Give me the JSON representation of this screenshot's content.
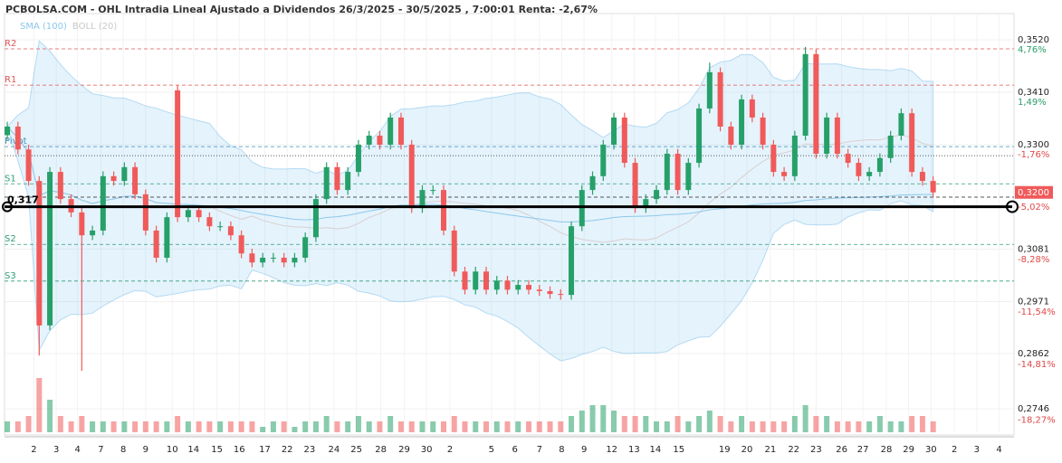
{
  "chart_data": {
    "type": "candlestick",
    "title": "PCBOLSA.COM - OHL Intradia Lineal Ajustado a Dividendos 26/3/2025 - 30/5/2025 , 7:00:01 Renta: -2,67%",
    "legend": [
      {
        "name": "SMA (100)",
        "color": "#8cc8ec"
      },
      {
        "name": "BOLL (20)",
        "color": "#c8c8c8"
      }
    ],
    "sma_period": 100,
    "boll_period": 20,
    "up_color": "#26a069",
    "down_color": "#f05a5a",
    "open": [
      0.332,
      0.3338,
      0.329,
      0.3224,
      0.2921,
      0.3243,
      0.3186,
      0.3158,
      0.311,
      0.312,
      0.3234,
      0.3224,
      0.3253,
      0.3196,
      0.312,
      0.3063,
      0.3414,
      0.3148,
      0.3163,
      0.3148,
      0.3129,
      0.3129,
      0.311,
      0.3072,
      0.3053,
      0.3063,
      0.3063,
      0.3053,
      0.3063,
      0.3106,
      0.3186,
      0.3253,
      0.3205,
      0.3243,
      0.33,
      0.3319,
      0.33,
      0.3357,
      0.33,
      0.3167,
      0.3205,
      0.3205,
      0.312,
      0.3034,
      0.2996,
      0.3034,
      0.2996,
      0.3015,
      0.2996,
      0.3006,
      0.2996,
      0.2993,
      0.2987,
      0.2985,
      0.3129,
      0.3205,
      0.3234,
      0.33,
      0.3357,
      0.3262,
      0.3167,
      0.3186,
      0.3205,
      0.3281,
      0.3205,
      0.3262,
      0.3376,
      0.3452,
      0.3338,
      0.33,
      0.3395,
      0.3357,
      0.33,
      0.3243,
      0.3234,
      0.3319,
      0.349,
      0.3281,
      0.3357,
      0.3281,
      0.3262,
      0.3234,
      0.3243,
      0.3272,
      0.3319,
      0.3366,
      0.3243,
      0.3224
    ],
    "high": [
      0.3348,
      0.3348,
      0.33,
      0.3234,
      0.3253,
      0.3253,
      0.3196,
      0.3168,
      0.313,
      0.3244,
      0.3244,
      0.3263,
      0.3263,
      0.3206,
      0.313,
      0.3158,
      0.3425,
      0.3173,
      0.3173,
      0.3158,
      0.3139,
      0.3139,
      0.312,
      0.3082,
      0.3073,
      0.3073,
      0.3073,
      0.3073,
      0.3116,
      0.3196,
      0.3263,
      0.3263,
      0.3253,
      0.331,
      0.3329,
      0.3329,
      0.3367,
      0.3367,
      0.331,
      0.3215,
      0.3215,
      0.3215,
      0.313,
      0.3044,
      0.3044,
      0.3044,
      0.3025,
      0.3025,
      0.3016,
      0.3016,
      0.3006,
      0.3003,
      0.2997,
      0.3139,
      0.3215,
      0.3244,
      0.331,
      0.3367,
      0.3367,
      0.3272,
      0.3196,
      0.3215,
      0.3291,
      0.3291,
      0.3272,
      0.3386,
      0.3472,
      0.3462,
      0.3348,
      0.3405,
      0.3405,
      0.3367,
      0.331,
      0.3253,
      0.3329,
      0.3505,
      0.35,
      0.3367,
      0.3367,
      0.3291,
      0.3272,
      0.3253,
      0.3282,
      0.3329,
      0.3376,
      0.3376,
      0.3253,
      0.3234
    ],
    "low": [
      0.331,
      0.328,
      0.3214,
      0.2858,
      0.2911,
      0.3176,
      0.3148,
      0.2826,
      0.31,
      0.311,
      0.3214,
      0.3214,
      0.3186,
      0.311,
      0.3053,
      0.3053,
      0.3138,
      0.3138,
      0.3138,
      0.3119,
      0.3119,
      0.31,
      0.3062,
      0.3043,
      0.3043,
      0.3053,
      0.3043,
      0.3043,
      0.3053,
      0.3096,
      0.3176,
      0.3195,
      0.3195,
      0.3233,
      0.329,
      0.329,
      0.329,
      0.329,
      0.3157,
      0.3157,
      0.3195,
      0.311,
      0.3024,
      0.2986,
      0.2986,
      0.2986,
      0.2986,
      0.2986,
      0.2986,
      0.2986,
      0.2983,
      0.2977,
      0.2975,
      0.2975,
      0.3119,
      0.3195,
      0.3224,
      0.329,
      0.3252,
      0.3157,
      0.3157,
      0.3176,
      0.3195,
      0.3195,
      0.3195,
      0.3252,
      0.3366,
      0.3328,
      0.329,
      0.329,
      0.3347,
      0.329,
      0.3233,
      0.3224,
      0.3224,
      0.3309,
      0.3271,
      0.3271,
      0.3271,
      0.3252,
      0.3224,
      0.3224,
      0.3233,
      0.3262,
      0.3309,
      0.3233,
      0.3214,
      0.319
    ],
    "close": [
      0.3338,
      0.329,
      0.3224,
      0.2921,
      0.3243,
      0.3186,
      0.3158,
      0.311,
      0.312,
      0.3234,
      0.3224,
      0.3253,
      0.3196,
      0.312,
      0.3063,
      0.3148,
      0.3148,
      0.3163,
      0.3148,
      0.3129,
      0.3129,
      0.311,
      0.3072,
      0.3053,
      0.3063,
      0.3063,
      0.3053,
      0.3063,
      0.3106,
      0.3186,
      0.3253,
      0.3205,
      0.3243,
      0.33,
      0.3319,
      0.33,
      0.3357,
      0.33,
      0.3167,
      0.3205,
      0.3205,
      0.312,
      0.3034,
      0.2996,
      0.3034,
      0.2996,
      0.3015,
      0.2996,
      0.3006,
      0.2996,
      0.2993,
      0.2987,
      0.2985,
      0.3129,
      0.3205,
      0.3234,
      0.33,
      0.3357,
      0.3262,
      0.3167,
      0.3186,
      0.3205,
      0.3281,
      0.3205,
      0.3262,
      0.3376,
      0.3452,
      0.3338,
      0.33,
      0.3395,
      0.3357,
      0.33,
      0.3243,
      0.3234,
      0.3319,
      0.349,
      0.3281,
      0.3357,
      0.3281,
      0.3262,
      0.3234,
      0.3243,
      0.3272,
      0.3319,
      0.3366,
      0.3243,
      0.3224,
      0.32
    ],
    "volume": [
      2,
      2,
      3,
      10,
      6,
      3,
      2,
      3,
      2,
      2,
      2,
      2,
      2,
      2,
      2,
      2,
      3,
      2,
      2,
      2,
      2,
      2,
      2,
      2,
      1,
      2,
      2,
      1,
      2,
      2,
      3,
      2,
      2,
      3,
      2,
      2,
      3,
      2,
      2,
      2,
      2,
      2,
      3,
      2,
      2,
      2,
      2,
      2,
      2,
      2,
      2,
      2,
      2,
      3,
      4,
      5,
      5,
      4,
      3,
      3,
      3,
      2,
      2,
      3,
      2,
      3,
      4,
      3,
      2,
      3,
      2,
      2,
      2,
      2,
      3,
      5,
      3,
      3,
      2,
      2,
      2,
      2,
      3,
      2,
      2,
      3,
      3,
      2
    ],
    "xlim": [
      -0.26,
      94.6
    ],
    "xticks": [
      {
        "value": 2.5,
        "label": "2"
      },
      {
        "value": 4.6,
        "label": "3"
      },
      {
        "value": 6.6,
        "label": "4"
      },
      {
        "value": 8.8,
        "label": "7"
      },
      {
        "value": 10.9,
        "label": "8"
      },
      {
        "value": 13.0,
        "label": "9"
      },
      {
        "value": 15.5,
        "label": "10"
      },
      {
        "value": 17.5,
        "label": "14"
      },
      {
        "value": 19.7,
        "label": "15"
      },
      {
        "value": 21.8,
        "label": "16"
      },
      {
        "value": 24.2,
        "label": "17"
      },
      {
        "value": 26.3,
        "label": "22"
      },
      {
        "value": 28.4,
        "label": "23"
      },
      {
        "value": 30.7,
        "label": "24"
      },
      {
        "value": 32.8,
        "label": "25"
      },
      {
        "value": 35.1,
        "label": "28"
      },
      {
        "value": 37.3,
        "label": "29"
      },
      {
        "value": 39.4,
        "label": "30"
      },
      {
        "value": 41.6,
        "label": "2"
      },
      {
        "value": 45.5,
        "label": "5"
      },
      {
        "value": 47.7,
        "label": "6"
      },
      {
        "value": 50.0,
        "label": "7"
      },
      {
        "value": 52.1,
        "label": "8"
      },
      {
        "value": 54.2,
        "label": "9"
      },
      {
        "value": 56.8,
        "label": "12"
      },
      {
        "value": 58.9,
        "label": "13"
      },
      {
        "value": 60.9,
        "label": "14"
      },
      {
        "value": 63.1,
        "label": "15"
      },
      {
        "value": 67.4,
        "label": "19"
      },
      {
        "value": 69.5,
        "label": "20"
      },
      {
        "value": 71.7,
        "label": "21"
      },
      {
        "value": 73.9,
        "label": "22"
      },
      {
        "value": 76.0,
        "label": "23"
      },
      {
        "value": 78.4,
        "label": "26"
      },
      {
        "value": 80.4,
        "label": "27"
      },
      {
        "value": 82.6,
        "label": "28"
      },
      {
        "value": 84.7,
        "label": "29"
      },
      {
        "value": 86.8,
        "label": "30"
      },
      {
        "value": 89.0,
        "label": "2"
      },
      {
        "value": 91.1,
        "label": "3"
      },
      {
        "value": 93.2,
        "label": "4"
      }
    ],
    "ylim": [
      0.2697,
      0.3575
    ],
    "yticks": [
      {
        "value": 0.352,
        "label": "0,3520"
      },
      {
        "value": 0.341,
        "label": "0,3410"
      },
      {
        "value": 0.33,
        "label": "0,3300"
      },
      {
        "value": 0.3081,
        "label": "0,3081"
      },
      {
        "value": 0.2971,
        "label": "0,2971"
      },
      {
        "value": 0.2862,
        "label": "0,2862"
      },
      {
        "value": 0.2746,
        "label": "0,2746"
      }
    ],
    "y2lim": [
      -19.02,
      7.01
    ],
    "y2ticks": [
      {
        "value": 4.76,
        "label": "4,76%"
      },
      {
        "value": 1.49,
        "label": "1,49%"
      },
      {
        "value": -1.76,
        "label": "-1,76%"
      },
      {
        "value": -5.02,
        "label": "-5,02%"
      },
      {
        "value": -8.28,
        "label": "-8,28%"
      },
      {
        "value": -11.54,
        "label": "-11,54%"
      },
      {
        "value": -14.81,
        "label": "-14,81%"
      },
      {
        "value": -18.27,
        "label": "-18,27%"
      }
    ],
    "levels": [
      {
        "name": "R2",
        "value": 0.3501,
        "color": "#e05555"
      },
      {
        "name": "R1",
        "value": 0.3425,
        "color": "#e05555"
      },
      {
        "name": "Pivot",
        "value": 0.3296,
        "color": "#3a8fb7"
      },
      {
        "name": "S1",
        "value": 0.3218,
        "color": "#2f9e7a"
      },
      {
        "name": "S2",
        "value": 0.3091,
        "color": "#2f9e7a"
      },
      {
        "name": "S3",
        "value": 0.3014,
        "color": "#2f9e7a"
      }
    ],
    "lines": [
      {
        "value": 0.3277,
        "style": "dotted"
      },
      {
        "value": 0.319,
        "style": "dashed"
      }
    ],
    "reference": {
      "value": 0.317,
      "label": "0,317"
    },
    "last": {
      "value": 0.32,
      "label": "0,3200"
    },
    "grid": true
  }
}
